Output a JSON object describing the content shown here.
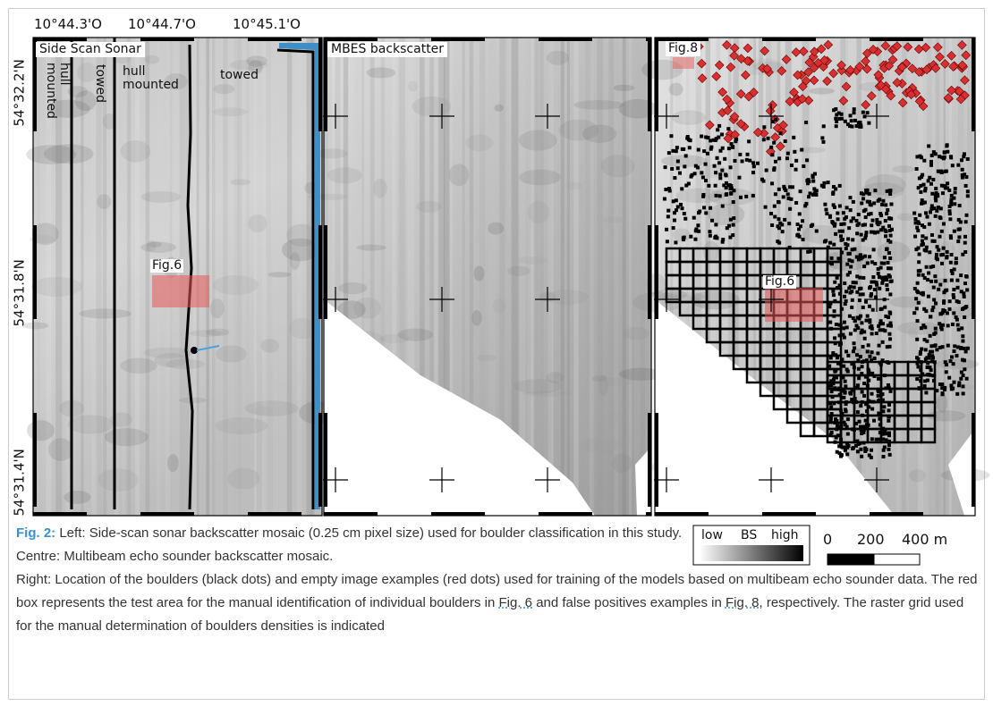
{
  "coordinates": {
    "longitudes": [
      "10°44.3'O",
      "10°44.7'O",
      "10°45.1'O"
    ],
    "latitudes": [
      "54°32.2'N",
      "54°31.8'N",
      "54°31.4'N"
    ]
  },
  "panels": [
    {
      "title": "Side Scan Sonar",
      "labels": [
        "hull mounted",
        "towed",
        "hull mounted",
        "towed"
      ],
      "box_label": "Fig.6"
    },
    {
      "title": "MBES backscatter"
    },
    {
      "labels": [
        "Fig.8",
        "Fig.6"
      ]
    }
  ],
  "legend": {
    "low": "low",
    "middle": "BS",
    "high": "high"
  },
  "scale_bar": {
    "labels": [
      "0",
      "200",
      "400 m"
    ]
  },
  "caption": {
    "label": "Fig. 2:",
    "text_1": "Left: Side-scan sonar backscatter mosaic (0.25 cm pixel size) used for boulder classification in this study. Centre: Multibeam echo sounder backscatter mosaic.",
    "text_2": "Right: Location of the boulders (black dots) and empty image examples (red dots) used for training of the models based on multibeam echo sounder data. The red box represents the test area for the manual identification of individual boulders in",
    "link_1": "Fig. 6",
    "text_3": "and false positives examples in",
    "link_2": "Fig. 8",
    "text_4": ", respectively. The raster grid used for the manual determination of boulders densities is indicated"
  }
}
